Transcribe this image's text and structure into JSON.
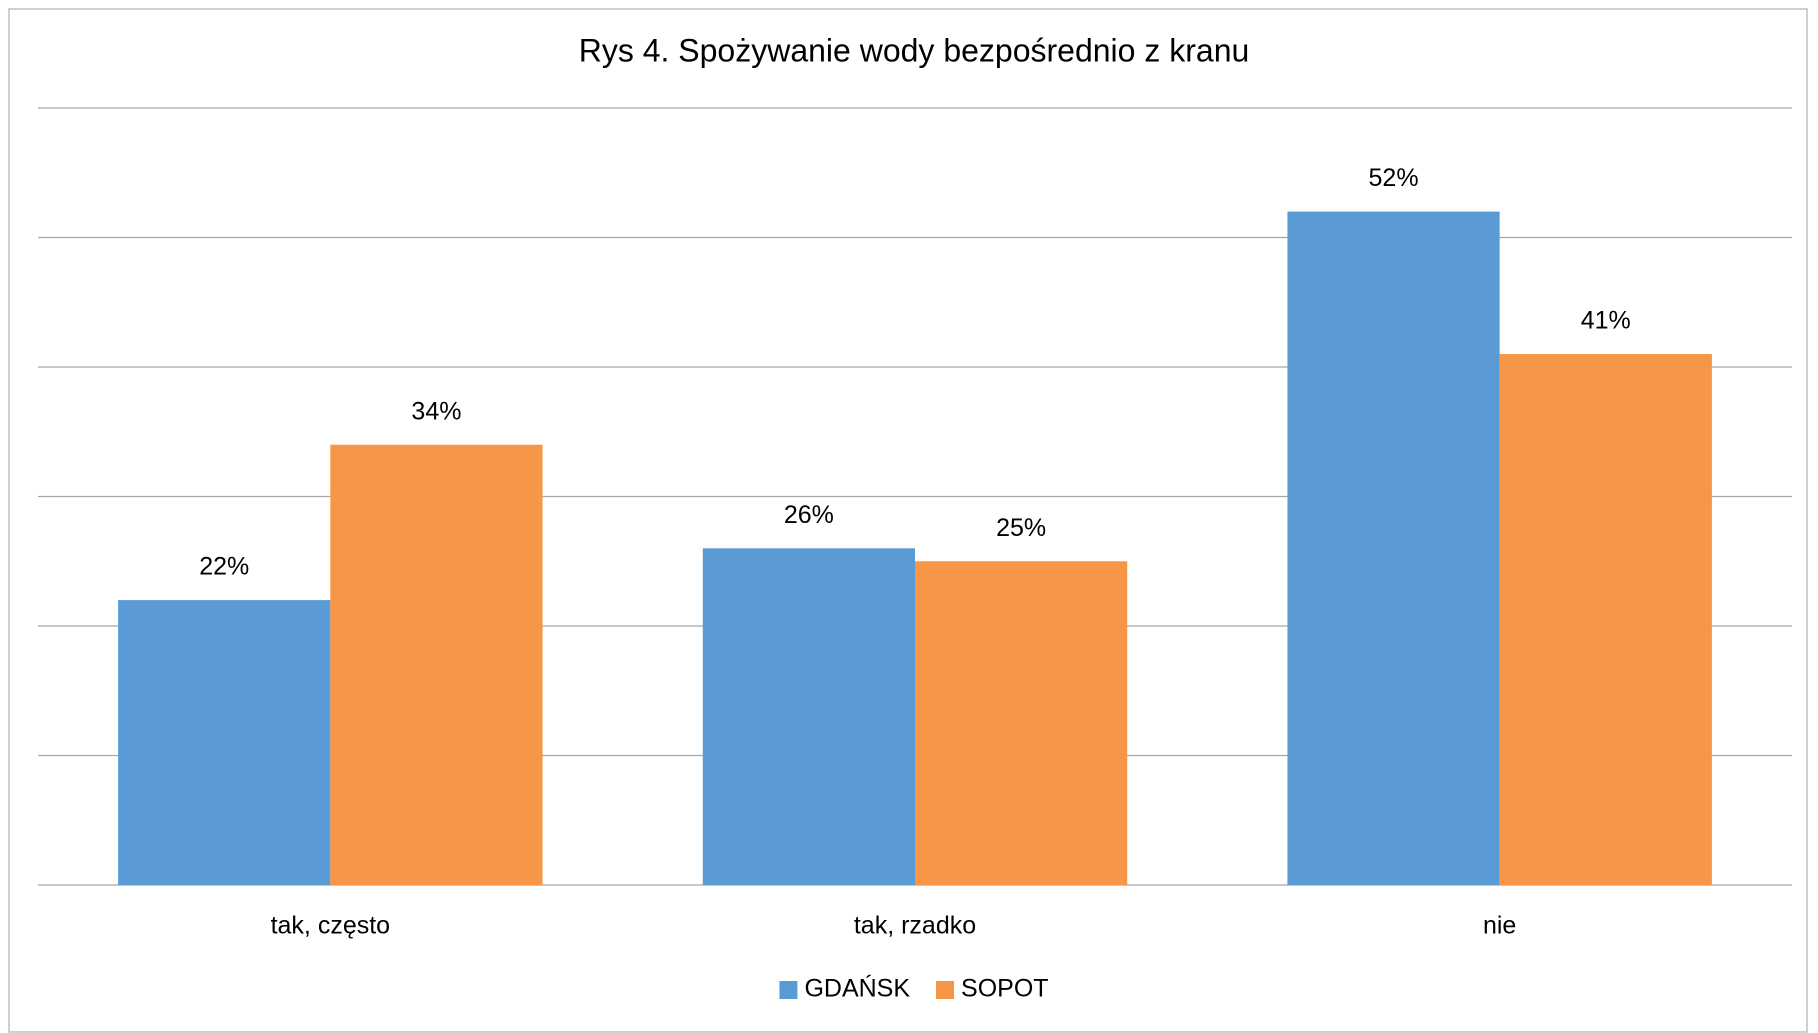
{
  "chart_data": {
    "type": "bar",
    "title": "Rys 4. Spożywanie wody bezpośrednio z kranu",
    "categories": [
      "tak, często",
      "tak, rzadko",
      "nie"
    ],
    "series": [
      {
        "name": "GDAŃSK",
        "color": "#5b9bd5",
        "values": [
          22,
          26,
          52
        ],
        "value_labels": [
          "22%",
          "26%",
          "52%"
        ]
      },
      {
        "name": "SOPOT",
        "color": "#f79646",
        "values": [
          34,
          25,
          41
        ],
        "value_labels": [
          "34%",
          "25%",
          "41%"
        ]
      }
    ],
    "ylim": [
      0,
      60
    ],
    "yticks": [
      0,
      10,
      20,
      30,
      40,
      50,
      60
    ],
    "grid": true,
    "legend": "bottom"
  }
}
